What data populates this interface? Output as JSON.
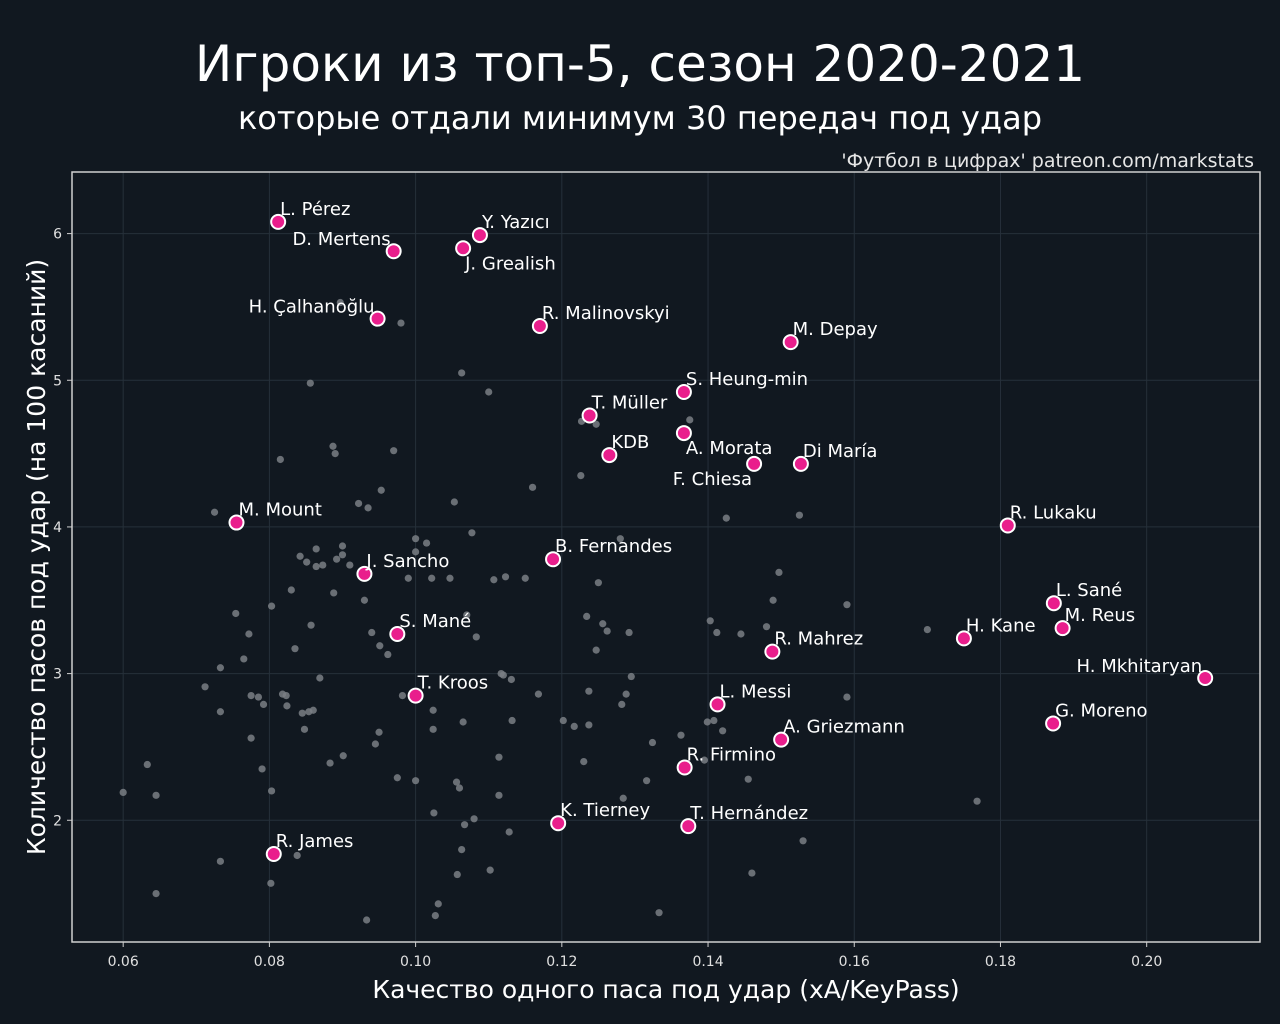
{
  "colors": {
    "background": "#111820",
    "highlight": "#e91e8c",
    "highlight_edge": "#ffffff",
    "other_points": "#7a7f85",
    "grid": "#26303a",
    "frame": "#d0d0d0",
    "text": "#ffffff"
  },
  "chart_data": {
    "type": "scatter",
    "title": "Игроки из топ-5, сезон 2020-2021",
    "subtitle": "которые отдали минимум 30 передач под удар",
    "credit": "'Футбол в цифрах' patreon.com/markstats",
    "xlabel": "Качество одного паса под удар (xA/KeyPass)",
    "ylabel": "Количество пасов под удар (на 100 касаний)",
    "xlim": [
      0.053,
      0.2155
    ],
    "ylim": [
      1.17,
      6.42
    ],
    "xticks": [
      "0.06",
      "0.08",
      "0.10",
      "0.12",
      "0.14",
      "0.16",
      "0.18",
      "0.20"
    ],
    "xtick_values": [
      0.06,
      0.08,
      0.1,
      0.12,
      0.14,
      0.16,
      0.18,
      0.2
    ],
    "yticks": [
      "2",
      "3",
      "4",
      "5",
      "6"
    ],
    "ytick_values": [
      2,
      3,
      4,
      5,
      6
    ],
    "grid": true,
    "highlighted": [
      {
        "name": "L. Pérez",
        "x": 0.0812,
        "y": 6.08,
        "pos": "above-right"
      },
      {
        "name": "D. Mertens",
        "x": 0.097,
        "y": 5.88,
        "pos": "left-above"
      },
      {
        "name": "Y. Yazıcı",
        "x": 0.1088,
        "y": 5.99,
        "pos": "above-right"
      },
      {
        "name": "J. Grealish",
        "x": 0.1065,
        "y": 5.9,
        "pos": "below-right"
      },
      {
        "name": "H. Çalhanoğlu",
        "x": 0.0948,
        "y": 5.42,
        "pos": "left-above"
      },
      {
        "name": "R. Malinovskyi",
        "x": 0.117,
        "y": 5.37,
        "pos": "above-right"
      },
      {
        "name": "M. Depay",
        "x": 0.1513,
        "y": 5.26,
        "pos": "above-right"
      },
      {
        "name": "S. Heung-min",
        "x": 0.1367,
        "y": 4.92,
        "pos": "above-right"
      },
      {
        "name": "T. Müller",
        "x": 0.1238,
        "y": 4.76,
        "pos": "above-right"
      },
      {
        "name": "A. Morata",
        "x": 0.1367,
        "y": 4.64,
        "pos": "below-right"
      },
      {
        "name": "KDB",
        "x": 0.1265,
        "y": 4.49,
        "pos": "above-right"
      },
      {
        "name": "F. Chiesa",
        "x": 0.1463,
        "y": 4.43,
        "pos": "below-left"
      },
      {
        "name": "Di María",
        "x": 0.1527,
        "y": 4.43,
        "pos": "above-right"
      },
      {
        "name": "M. Mount",
        "x": 0.0755,
        "y": 4.03,
        "pos": "above-right"
      },
      {
        "name": "R. Lukaku",
        "x": 0.181,
        "y": 4.01,
        "pos": "above-right"
      },
      {
        "name": "B. Fernandes",
        "x": 0.1188,
        "y": 3.78,
        "pos": "above-right"
      },
      {
        "name": "J. Sancho",
        "x": 0.093,
        "y": 3.68,
        "pos": "above-right"
      },
      {
        "name": "L. Sané",
        "x": 0.1873,
        "y": 3.48,
        "pos": "above-right"
      },
      {
        "name": "M. Reus",
        "x": 0.1885,
        "y": 3.31,
        "pos": "above-right"
      },
      {
        "name": "S. Mané",
        "x": 0.0975,
        "y": 3.27,
        "pos": "above-right"
      },
      {
        "name": "H. Kane",
        "x": 0.175,
        "y": 3.24,
        "pos": "above-right"
      },
      {
        "name": "R. Mahrez",
        "x": 0.1488,
        "y": 3.15,
        "pos": "above-right"
      },
      {
        "name": "H. Mkhitaryan",
        "x": 0.208,
        "y": 2.97,
        "pos": "left-above"
      },
      {
        "name": "T. Kroos",
        "x": 0.1,
        "y": 2.85,
        "pos": "above-right"
      },
      {
        "name": "L. Messi",
        "x": 0.1413,
        "y": 2.79,
        "pos": "above-right"
      },
      {
        "name": "G. Moreno",
        "x": 0.1872,
        "y": 2.66,
        "pos": "above-right"
      },
      {
        "name": "A. Griezmann",
        "x": 0.15,
        "y": 2.55,
        "pos": "above-right"
      },
      {
        "name": "R. Firmino",
        "x": 0.1368,
        "y": 2.36,
        "pos": "above-right"
      },
      {
        "name": "K. Tierney",
        "x": 0.1195,
        "y": 1.98,
        "pos": "above-right"
      },
      {
        "name": "T. Hernández",
        "x": 0.1373,
        "y": 1.96,
        "pos": "above-right"
      },
      {
        "name": "R. James",
        "x": 0.0806,
        "y": 1.77,
        "pos": "above-right"
      }
    ],
    "others": [
      [
        0.06,
        2.19
      ],
      [
        0.0633,
        2.38
      ],
      [
        0.0645,
        2.17
      ],
      [
        0.0645,
        1.5
      ],
      [
        0.0725,
        4.1
      ],
      [
        0.0712,
        2.91
      ],
      [
        0.0733,
        2.74
      ],
      [
        0.0733,
        3.04
      ],
      [
        0.0733,
        1.72
      ],
      [
        0.0754,
        3.41
      ],
      [
        0.0765,
        3.1
      ],
      [
        0.0772,
        3.27
      ],
      [
        0.0775,
        2.56
      ],
      [
        0.0775,
        2.85
      ],
      [
        0.0785,
        2.84
      ],
      [
        0.0792,
        2.79
      ],
      [
        0.079,
        2.35
      ],
      [
        0.0803,
        3.46
      ],
      [
        0.0803,
        2.2
      ],
      [
        0.0802,
        1.57
      ],
      [
        0.0815,
        4.46
      ],
      [
        0.0818,
        2.86
      ],
      [
        0.0823,
        2.85
      ],
      [
        0.0824,
        2.78
      ],
      [
        0.083,
        3.57
      ],
      [
        0.0835,
        3.17
      ],
      [
        0.0838,
        1.76
      ],
      [
        0.0842,
        3.8
      ],
      [
        0.0845,
        2.73
      ],
      [
        0.0848,
        2.62
      ],
      [
        0.0851,
        3.76
      ],
      [
        0.0854,
        2.74
      ],
      [
        0.0856,
        4.98
      ],
      [
        0.0857,
        3.33
      ],
      [
        0.086,
        2.75
      ],
      [
        0.0864,
        3.85
      ],
      [
        0.0864,
        3.73
      ],
      [
        0.0869,
        2.97
      ],
      [
        0.0873,
        3.74
      ],
      [
        0.0883,
        2.39
      ],
      [
        0.0887,
        4.55
      ],
      [
        0.0888,
        3.55
      ],
      [
        0.089,
        4.5
      ],
      [
        0.0892,
        3.78
      ],
      [
        0.0897,
        5.53
      ],
      [
        0.09,
        3.87
      ],
      [
        0.09,
        3.81
      ],
      [
        0.0901,
        2.44
      ],
      [
        0.091,
        3.74
      ],
      [
        0.0922,
        4.16
      ],
      [
        0.093,
        3.5
      ],
      [
        0.093,
        3.66
      ],
      [
        0.0933,
        1.32
      ],
      [
        0.0935,
        4.13
      ],
      [
        0.094,
        3.28
      ],
      [
        0.0945,
        2.52
      ],
      [
        0.095,
        2.6
      ],
      [
        0.0951,
        3.19
      ],
      [
        0.0953,
        4.25
      ],
      [
        0.0962,
        3.13
      ],
      [
        0.097,
        4.52
      ],
      [
        0.0975,
        2.29
      ],
      [
        0.098,
        5.39
      ],
      [
        0.0982,
        2.85
      ],
      [
        0.099,
        3.65
      ],
      [
        0.1,
        3.92
      ],
      [
        0.1,
        3.83
      ],
      [
        0.1,
        2.27
      ],
      [
        0.1015,
        3.89
      ],
      [
        0.1022,
        3.65
      ],
      [
        0.1024,
        2.75
      ],
      [
        0.1024,
        2.62
      ],
      [
        0.1025,
        2.05
      ],
      [
        0.1027,
        1.35
      ],
      [
        0.1031,
        1.43
      ],
      [
        0.1047,
        3.65
      ],
      [
        0.1053,
        4.17
      ],
      [
        0.1056,
        2.26
      ],
      [
        0.1057,
        1.63
      ],
      [
        0.106,
        2.22
      ],
      [
        0.1063,
        5.05
      ],
      [
        0.1063,
        1.8
      ],
      [
        0.1065,
        2.67
      ],
      [
        0.1067,
        1.97
      ],
      [
        0.107,
        3.4
      ],
      [
        0.1077,
        3.96
      ],
      [
        0.108,
        2.01
      ],
      [
        0.1083,
        3.25
      ],
      [
        0.11,
        4.92
      ],
      [
        0.1102,
        1.66
      ],
      [
        0.1107,
        3.64
      ],
      [
        0.1114,
        2.43
      ],
      [
        0.1114,
        2.17
      ],
      [
        0.1117,
        3.0
      ],
      [
        0.112,
        2.99
      ],
      [
        0.1123,
        3.66
      ],
      [
        0.1128,
        1.92
      ],
      [
        0.1131,
        2.96
      ],
      [
        0.1132,
        2.68
      ],
      [
        0.115,
        3.65
      ],
      [
        0.116,
        4.27
      ],
      [
        0.1168,
        2.86
      ],
      [
        0.119,
        3.75
      ],
      [
        0.1202,
        2.68
      ],
      [
        0.1217,
        2.64
      ],
      [
        0.1226,
        4.35
      ],
      [
        0.1227,
        4.72
      ],
      [
        0.123,
        2.4
      ],
      [
        0.1234,
        3.39
      ],
      [
        0.1237,
        2.88
      ],
      [
        0.1237,
        2.65
      ],
      [
        0.1247,
        4.7
      ],
      [
        0.1247,
        3.16
      ],
      [
        0.125,
        3.62
      ],
      [
        0.1256,
        3.34
      ],
      [
        0.1262,
        3.29
      ],
      [
        0.128,
        3.92
      ],
      [
        0.1282,
        2.79
      ],
      [
        0.1284,
        2.15
      ],
      [
        0.1288,
        2.86
      ],
      [
        0.1292,
        3.28
      ],
      [
        0.1295,
        2.98
      ],
      [
        0.1316,
        2.27
      ],
      [
        0.1324,
        2.53
      ],
      [
        0.1333,
        1.37
      ],
      [
        0.1363,
        2.58
      ],
      [
        0.1375,
        4.73
      ],
      [
        0.1395,
        2.41
      ],
      [
        0.1399,
        2.67
      ],
      [
        0.1403,
        3.36
      ],
      [
        0.1408,
        2.68
      ],
      [
        0.1412,
        3.28
      ],
      [
        0.142,
        2.61
      ],
      [
        0.1425,
        4.06
      ],
      [
        0.1445,
        3.27
      ],
      [
        0.1455,
        2.28
      ],
      [
        0.146,
        1.64
      ],
      [
        0.148,
        3.32
      ],
      [
        0.1489,
        3.5
      ],
      [
        0.1497,
        3.69
      ],
      [
        0.1525,
        4.08
      ],
      [
        0.153,
        1.86
      ],
      [
        0.159,
        3.47
      ],
      [
        0.159,
        2.84
      ],
      [
        0.17,
        3.3
      ],
      [
        0.1768,
        2.13
      ]
    ]
  }
}
